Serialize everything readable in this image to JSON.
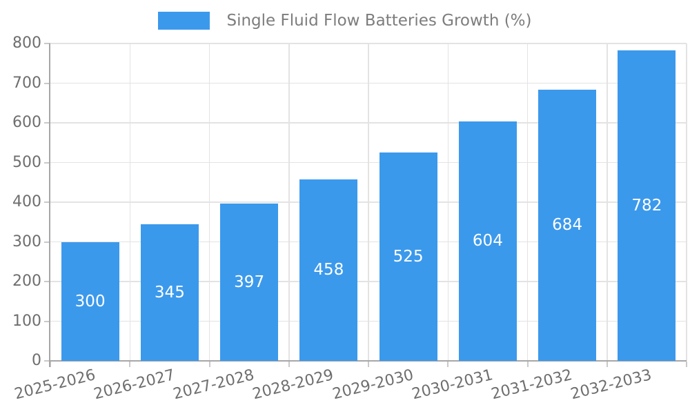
{
  "chart_data": {
    "type": "bar",
    "title": "Single Fluid Flow Batteries Growth (%)",
    "legend_label": "Single Fluid Flow Batteries Growth (%)",
    "legend_position": "top-center",
    "categories": [
      "2025-2026",
      "2026-2027",
      "2027-2028",
      "2028-2029",
      "2029-2030",
      "2030-2031",
      "2031-2032",
      "2032-2033"
    ],
    "values": [
      300,
      345,
      397,
      458,
      525,
      604,
      684,
      782
    ],
    "xlabel": "",
    "ylabel": "",
    "ylim": [
      0,
      800
    ],
    "ytick_step": 100,
    "grid": true,
    "bar_label_position": "inside-center",
    "colors": {
      "bar": "#3b99ec",
      "bar_label": "#ffffff",
      "axis_line": "#a6a6a6",
      "gridline": "#e3e3e3",
      "tick_mark": "#c9c9c9",
      "tick_text": "#6e6e6e",
      "legend_text": "#7d7d7d"
    }
  }
}
